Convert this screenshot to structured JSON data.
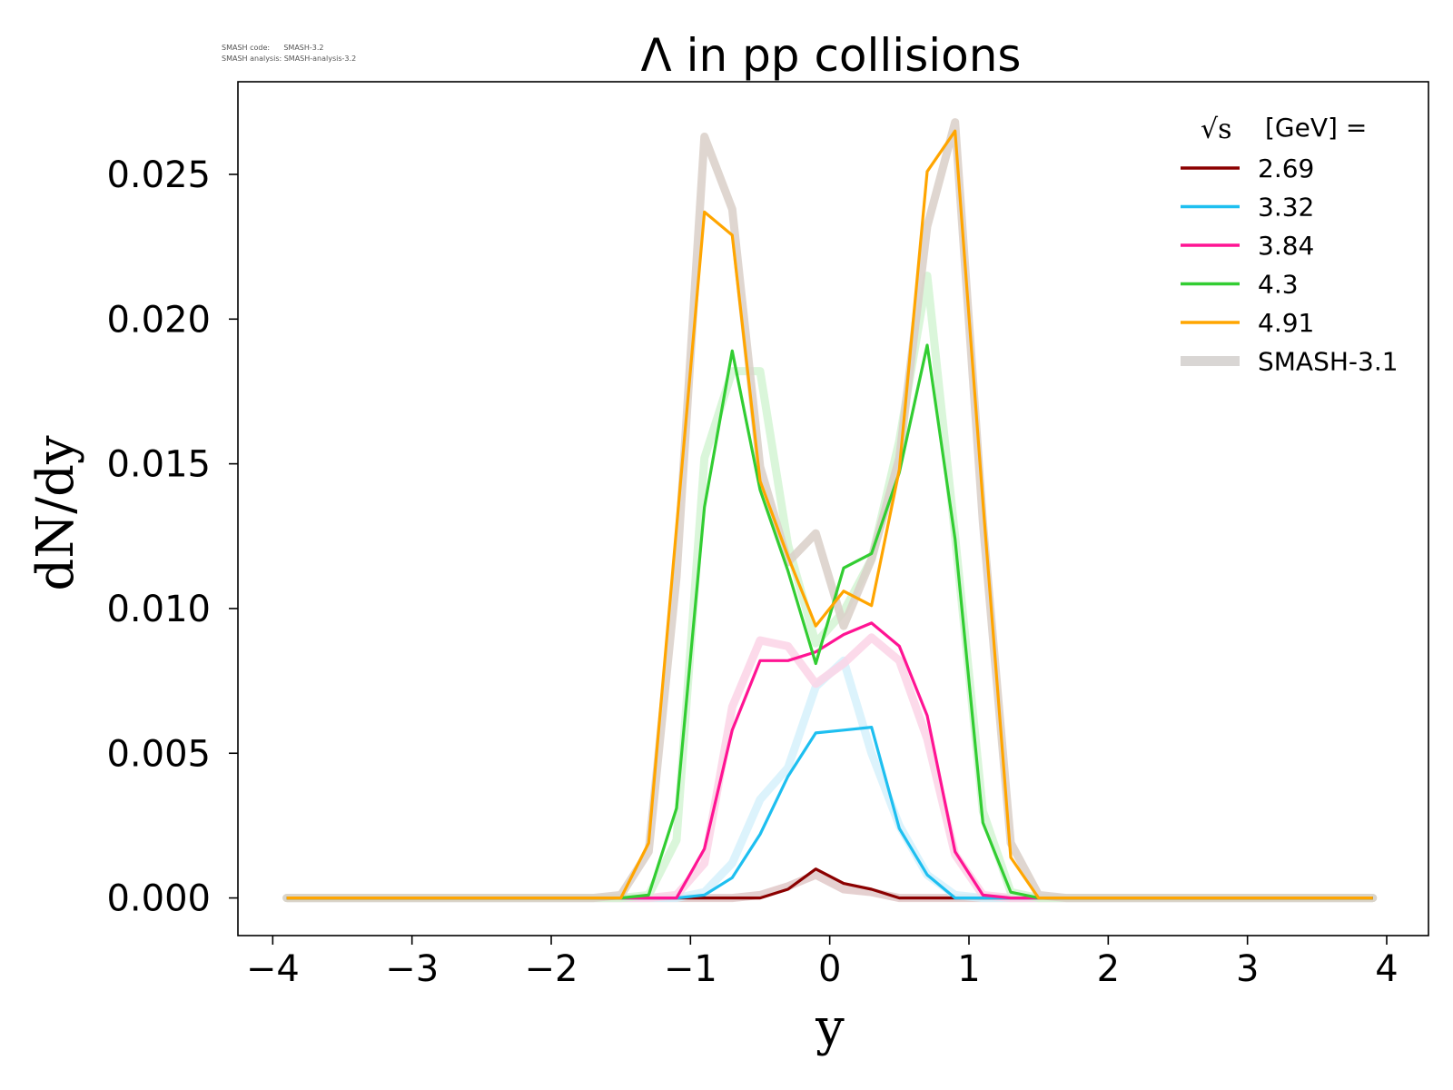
{
  "header": {
    "version_lines": [
      "SMASH code:      SMASH-3.2",
      "SMASH analysis: SMASH-analysis-3.2"
    ]
  },
  "chart_data": {
    "type": "line",
    "title": "Λ in pp collisions",
    "xlabel": "y",
    "ylabel": "dN/dy",
    "xlim": [
      -4.25,
      4.3
    ],
    "ylim": [
      -0.0013,
      0.0282
    ],
    "xticks": [
      -4,
      -3,
      -2,
      -1,
      0,
      1,
      2,
      3,
      4
    ],
    "xtick_labels": [
      "−4",
      "−3",
      "−2",
      "−1",
      "0",
      "1",
      "2",
      "3",
      "4"
    ],
    "yticks": [
      0.0,
      0.005,
      0.01,
      0.015,
      0.02,
      0.025
    ],
    "ytick_labels": [
      "0.000",
      "0.005",
      "0.010",
      "0.015",
      "0.020",
      "0.025"
    ],
    "grid": false,
    "legend": {
      "placement": "top-right",
      "title": "[GeV] =",
      "title_symbol": "√s",
      "entries": [
        "2.69",
        "3.32",
        "3.84",
        "4.3",
        "4.91",
        "SMASH-3.1"
      ],
      "entry_colors": [
        "#8b0000",
        "#1ebff0",
        "#ff1493",
        "#32cd32",
        "#ffa500",
        "#d9d6d4"
      ]
    },
    "x": [
      -3.9,
      -3.7,
      -3.5,
      -3.3,
      -3.1,
      -2.9,
      -2.7,
      -2.5,
      -2.3,
      -2.1,
      -1.9,
      -1.7,
      -1.5,
      -1.3,
      -1.1,
      -0.9,
      -0.7,
      -0.5,
      -0.3,
      -0.1,
      0.1,
      0.3,
      0.5,
      0.7,
      0.9,
      1.1,
      1.3,
      1.5,
      1.7,
      1.9,
      2.1,
      2.3,
      2.5,
      2.7,
      2.9,
      3.1,
      3.3,
      3.5,
      3.7,
      3.9
    ],
    "series": [
      {
        "name": "2.69",
        "color": "#8b0000",
        "ref_color": "#e0c8c8",
        "values": [
          0,
          0,
          0,
          0,
          0,
          0,
          0,
          0,
          0,
          0,
          0,
          0,
          0,
          0,
          0,
          0,
          0,
          0,
          0.0003,
          0.001,
          0.0005,
          0.0003,
          0,
          0,
          0,
          0,
          0,
          0,
          0,
          0,
          0,
          0,
          0,
          0,
          0,
          0,
          0,
          0,
          0,
          0
        ],
        "ref": [
          0,
          0,
          0,
          0,
          0,
          0,
          0,
          0,
          0,
          0,
          0,
          0,
          0,
          0,
          0,
          0,
          0,
          0.0001,
          0.0004,
          0.0008,
          0.0003,
          0.0002,
          0,
          0,
          0,
          0,
          0,
          0,
          0,
          0,
          0,
          0,
          0,
          0,
          0,
          0,
          0,
          0,
          0,
          0
        ]
      },
      {
        "name": "3.32",
        "color": "#1ebff0",
        "ref_color": "#d6f1fb",
        "values": [
          0,
          0,
          0,
          0,
          0,
          0,
          0,
          0,
          0,
          0,
          0,
          0,
          0,
          0,
          0,
          0.0001,
          0.0007,
          0.0022,
          0.0042,
          0.0057,
          0.0058,
          0.0059,
          0.0024,
          0.0008,
          0,
          0,
          0,
          0,
          0,
          0,
          0,
          0,
          0,
          0,
          0,
          0,
          0,
          0,
          0,
          0
        ],
        "ref": [
          0,
          0,
          0,
          0,
          0,
          0,
          0,
          0,
          0,
          0,
          0,
          0,
          0,
          0,
          0,
          0.0002,
          0.0012,
          0.0034,
          0.0045,
          0.0073,
          0.0082,
          0.005,
          0.0025,
          0.0008,
          0.0001,
          0,
          0,
          0,
          0,
          0,
          0,
          0,
          0,
          0,
          0,
          0,
          0,
          0,
          0,
          0
        ]
      },
      {
        "name": "3.84",
        "color": "#ff1493",
        "ref_color": "#fbd3e6",
        "values": [
          0,
          0,
          0,
          0,
          0,
          0,
          0,
          0,
          0,
          0,
          0,
          0,
          0,
          0,
          0,
          0.0017,
          0.0058,
          0.0082,
          0.0082,
          0.0085,
          0.0091,
          0.0095,
          0.0087,
          0.0063,
          0.0016,
          0.0001,
          0,
          0,
          0,
          0,
          0,
          0,
          0,
          0,
          0,
          0,
          0,
          0,
          0,
          0
        ],
        "ref": [
          0,
          0,
          0,
          0,
          0,
          0,
          0,
          0,
          0,
          0,
          0,
          0,
          0,
          0,
          0.0001,
          0.0012,
          0.0066,
          0.0089,
          0.0087,
          0.0074,
          0.0081,
          0.009,
          0.0082,
          0.0055,
          0.0015,
          0.0001,
          0,
          0,
          0,
          0,
          0,
          0,
          0,
          0,
          0,
          0,
          0,
          0,
          0,
          0
        ]
      },
      {
        "name": "4.3",
        "color": "#32cd32",
        "ref_color": "#d4f5d4",
        "values": [
          0,
          0,
          0,
          0,
          0,
          0,
          0,
          0,
          0,
          0,
          0,
          0,
          0,
          0.0001,
          0.0031,
          0.0135,
          0.0189,
          0.0141,
          0.0113,
          0.0081,
          0.0114,
          0.0119,
          0.0147,
          0.0191,
          0.0124,
          0.0026,
          0.0002,
          0,
          0,
          0,
          0,
          0,
          0,
          0,
          0,
          0,
          0,
          0,
          0,
          0
        ],
        "ref": [
          0,
          0,
          0,
          0,
          0,
          0,
          0,
          0,
          0,
          0,
          0,
          0,
          0,
          0.0001,
          0.002,
          0.0152,
          0.0182,
          0.0182,
          0.0122,
          0.0088,
          0.0099,
          0.0117,
          0.0158,
          0.0215,
          0.0125,
          0.003,
          0.0002,
          0,
          0,
          0,
          0,
          0,
          0,
          0,
          0,
          0,
          0,
          0,
          0,
          0
        ]
      },
      {
        "name": "4.91",
        "color": "#ffa500",
        "ref_color": "#d9cfc8",
        "values": [
          0,
          0,
          0,
          0,
          0,
          0,
          0,
          0,
          0,
          0,
          0,
          0,
          0,
          0.0019,
          0.0128,
          0.0237,
          0.0229,
          0.0144,
          0.0118,
          0.0094,
          0.0106,
          0.0101,
          0.0148,
          0.0251,
          0.0265,
          0.0137,
          0.0014,
          0,
          0,
          0,
          0,
          0,
          0,
          0,
          0,
          0,
          0,
          0,
          0,
          0
        ],
        "ref": [
          0,
          0,
          0,
          0,
          0,
          0,
          0,
          0,
          0,
          0,
          0,
          0,
          0.0001,
          0.0016,
          0.0111,
          0.0263,
          0.0238,
          0.0149,
          0.0116,
          0.0126,
          0.0094,
          0.0117,
          0.0152,
          0.0232,
          0.0268,
          0.013,
          0.0019,
          0.0001,
          0,
          0,
          0,
          0,
          0,
          0,
          0,
          0,
          0,
          0,
          0,
          0
        ]
      }
    ]
  }
}
